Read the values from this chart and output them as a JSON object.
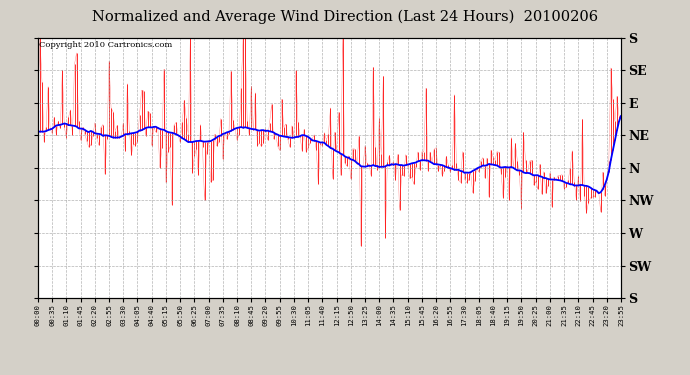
{
  "title": "Normalized and Average Wind Direction (Last 24 Hours)  20100206",
  "copyright": "Copyright 2010 Cartronics.com",
  "background_color": "#d4d0c8",
  "plot_bg_color": "#ffffff",
  "grid_color": "#a0a0a0",
  "red_line_color": "#ff0000",
  "blue_line_color": "#0000ff",
  "ylabel_right": [
    "S",
    "SE",
    "E",
    "NE",
    "N",
    "NW",
    "W",
    "SW",
    "S"
  ],
  "ytick_values": [
    360,
    315,
    270,
    225,
    180,
    135,
    90,
    45,
    0
  ],
  "ylim": [
    0,
    360
  ],
  "xtick_labels": [
    "00:00",
    "00:35",
    "01:10",
    "01:45",
    "02:20",
    "02:55",
    "03:30",
    "04:05",
    "04:40",
    "05:15",
    "05:50",
    "06:25",
    "07:00",
    "07:35",
    "08:10",
    "08:45",
    "09:20",
    "09:55",
    "10:30",
    "11:05",
    "11:40",
    "12:15",
    "12:50",
    "13:25",
    "14:00",
    "14:35",
    "15:10",
    "15:45",
    "16:20",
    "16:55",
    "17:30",
    "18:05",
    "18:40",
    "19:15",
    "19:50",
    "20:25",
    "21:00",
    "21:35",
    "22:10",
    "22:45",
    "23:20",
    "23:55"
  ],
  "n_points": 288,
  "seed": 12345
}
